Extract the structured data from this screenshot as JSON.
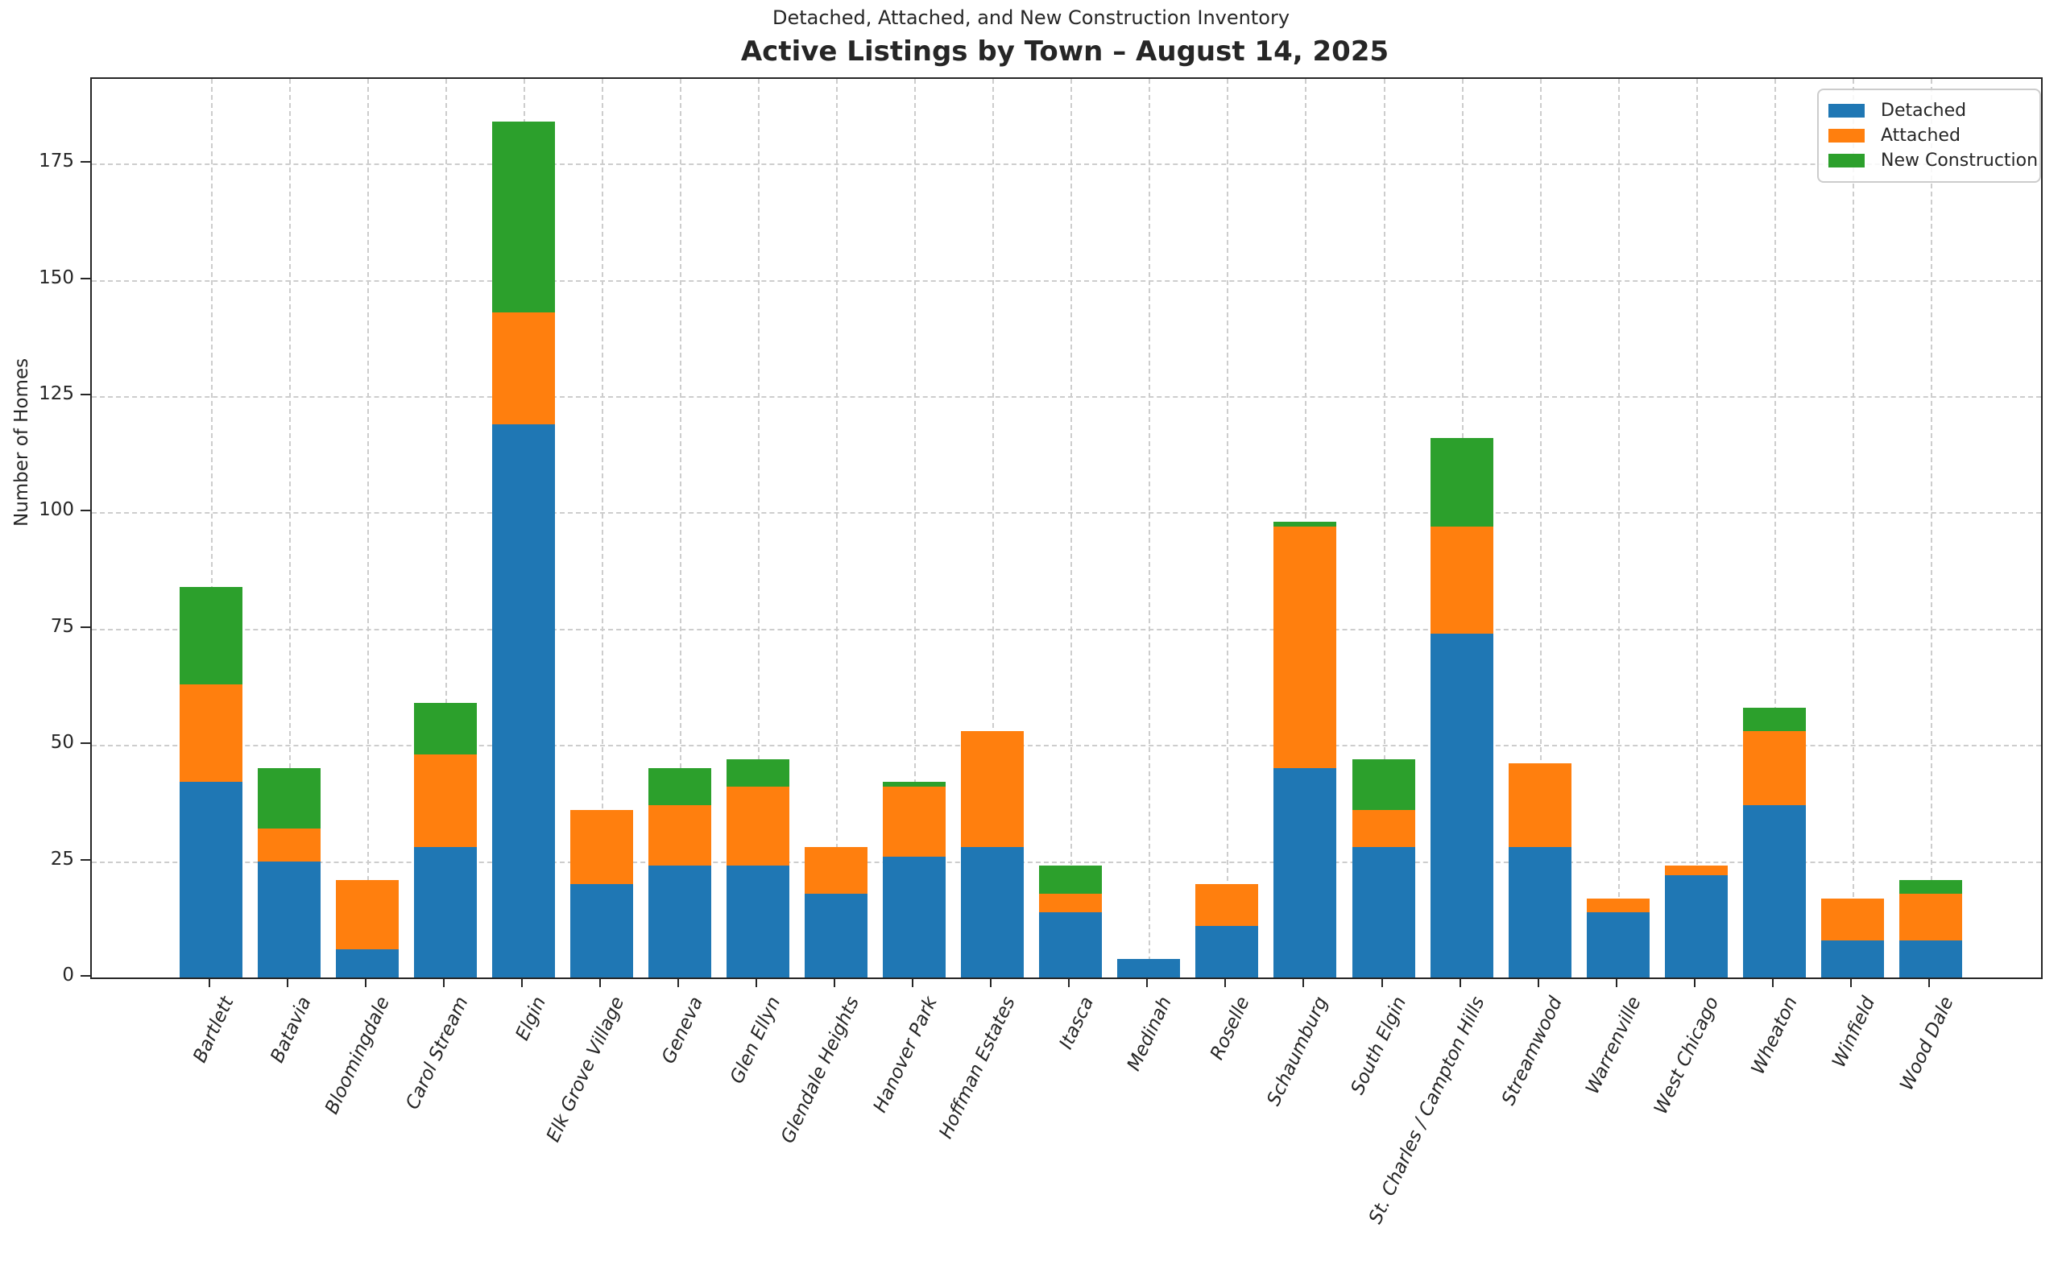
{
  "suptitle": "Detached, Attached, and New Construction Inventory",
  "title": "Active Listings by Town – August 14, 2025",
  "ylabel": "Number of Homes",
  "chart_data": {
    "type": "bar",
    "stacked": true,
    "title": "Active Listings by Town – August 14, 2025",
    "subtitle": "Detached, Attached, and New Construction Inventory",
    "xlabel": "",
    "ylabel": "Number of Homes",
    "ylim": [
      0,
      193
    ],
    "yticks": [
      0,
      25,
      50,
      75,
      100,
      125,
      150,
      175
    ],
    "grid": true,
    "grid_style": "dashed",
    "legend_position": "upper right",
    "categories": [
      "Bartlett",
      "Batavia",
      "Bloomingdale",
      "Carol Stream",
      "Elgin",
      "Elk Grove Village",
      "Geneva",
      "Glen Ellyn",
      "Glendale Heights",
      "Hanover Park",
      "Hoffman Estates",
      "Itasca",
      "Medinah",
      "Roselle",
      "Schaumburg",
      "South Elgin",
      "St. Charles / Campton Hills",
      "Streamwood",
      "Warrenville",
      "West Chicago",
      "Wheaton",
      "Winfield",
      "Wood Dale"
    ],
    "series": [
      {
        "name": "Detached",
        "color": "#1f77b4",
        "values": [
          42,
          25,
          6,
          28,
          119,
          20,
          24,
          24,
          18,
          26,
          28,
          14,
          4,
          11,
          45,
          28,
          74,
          28,
          14,
          22,
          37,
          8,
          8
        ]
      },
      {
        "name": "Attached",
        "color": "#ff7f0e",
        "values": [
          21,
          7,
          15,
          20,
          24,
          16,
          13,
          17,
          10,
          15,
          25,
          4,
          0,
          9,
          52,
          8,
          23,
          18,
          3,
          2,
          16,
          9,
          10
        ]
      },
      {
        "name": "New Construction",
        "color": "#2ca02c",
        "values": [
          21,
          13,
          0,
          11,
          41,
          0,
          8,
          6,
          0,
          1,
          0,
          6,
          0,
          0,
          1,
          11,
          19,
          0,
          0,
          0,
          5,
          0,
          3
        ]
      }
    ],
    "totals": [
      84,
      45,
      21,
      59,
      184,
      36,
      45,
      47,
      28,
      42,
      53,
      24,
      4,
      20,
      98,
      47,
      116,
      46,
      17,
      24,
      58,
      17,
      21
    ]
  }
}
